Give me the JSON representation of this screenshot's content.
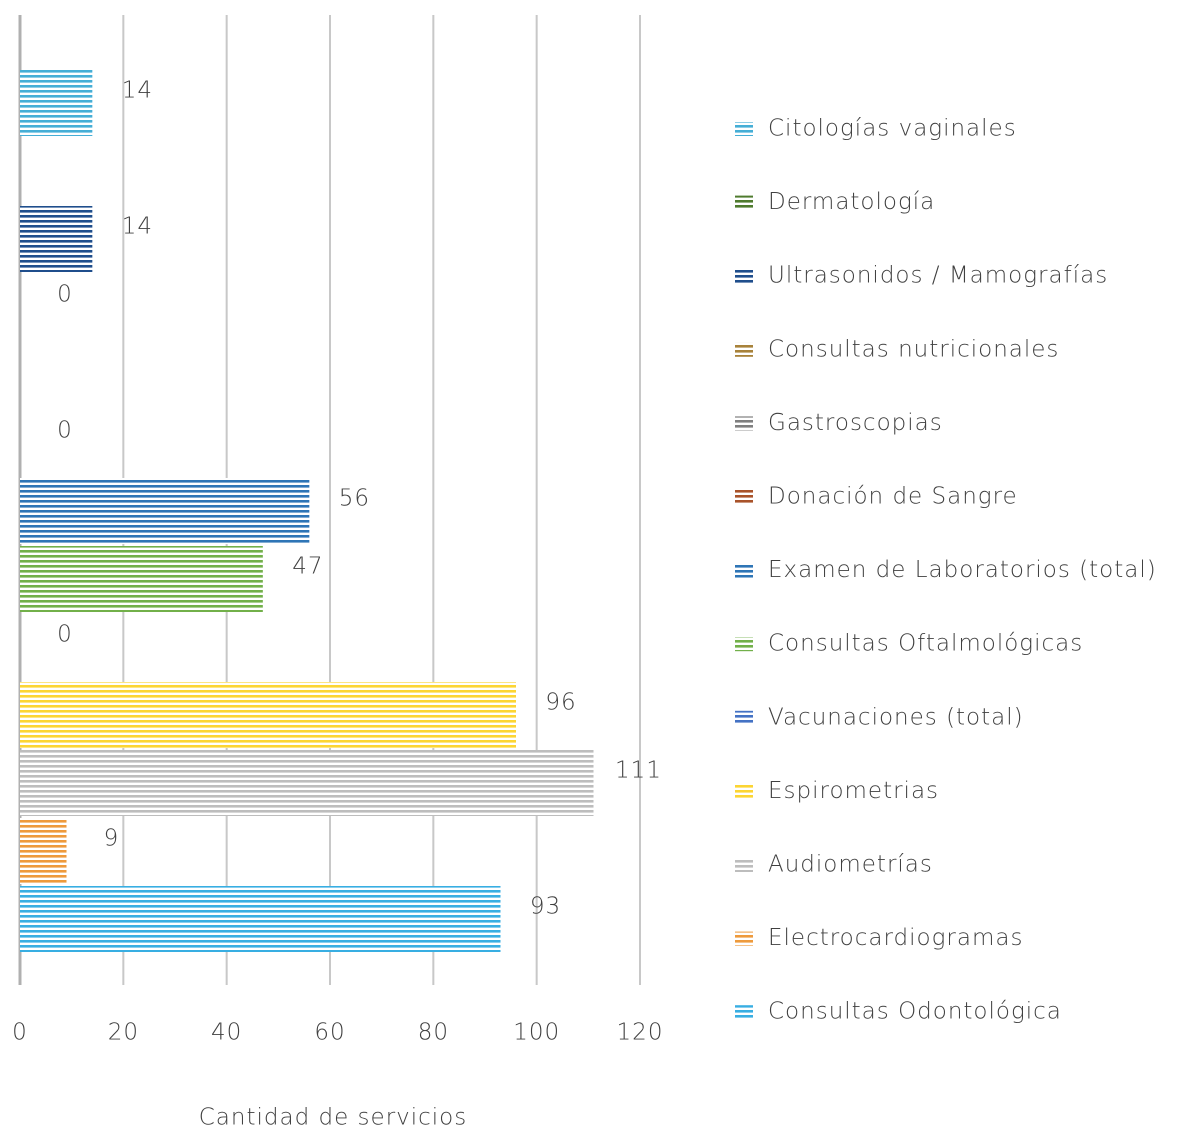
{
  "chart_data": {
    "type": "hbar",
    "x_label": "Cantidad de servicios",
    "categories": [
      "Citologías vaginales",
      "Dermatología",
      "Ultrasonidos / Mamografías",
      "Consultas nutricionales",
      "Gastroscopias",
      "Donación de Sangre",
      "Examen de Laboratorios (total)",
      "Consultas Oftalmológicas",
      "Vacunaciones (total)",
      "Espirometrias",
      "Audiometrías",
      "Electrocardiogramas",
      "Consultas Odontológica"
    ],
    "values": [
      14,
      null,
      14,
      0,
      null,
      0,
      56,
      47,
      0,
      96,
      111,
      9,
      93
    ],
    "colors": [
      "#45aed6",
      "#4f7b2e",
      "#1f4e8c",
      "#a8823a",
      "#7f7f7f",
      "#a9532a",
      "#2e75b6",
      "#72b04a",
      "#4472c4",
      "#fcd533",
      "#bdbdbd",
      "#ee9a3c",
      "#38aee2"
    ],
    "xlim": [
      0,
      120
    ],
    "xticks": [
      0,
      20,
      40,
      60,
      80,
      100,
      120
    ],
    "grid": true
  }
}
